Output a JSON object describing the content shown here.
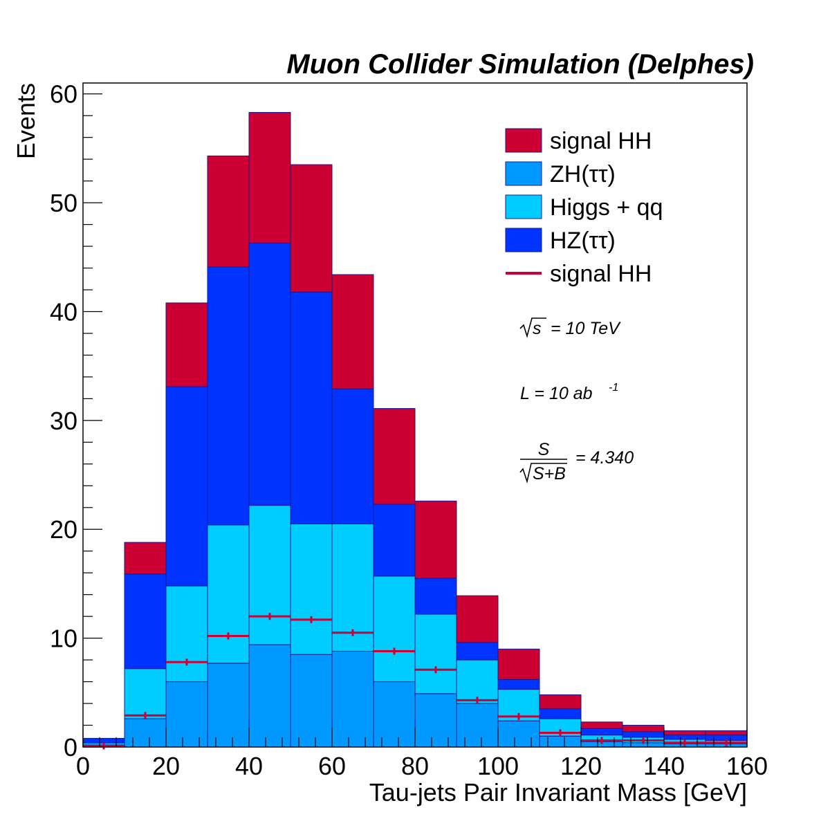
{
  "chart_data": {
    "type": "bar",
    "title": "Muon Collider Simulation (Delphes)",
    "xlabel": "Tau-jets Pair Invariant Mass [GeV]",
    "ylabel": "Events",
    "xlim": [
      0,
      160
    ],
    "ylim": [
      0,
      61
    ],
    "xticks": [
      0,
      20,
      40,
      60,
      80,
      100,
      120,
      140,
      160
    ],
    "yticks": [
      0,
      10,
      20,
      30,
      40,
      50,
      60
    ],
    "bin_edges": [
      0,
      10,
      20,
      30,
      40,
      50,
      60,
      70,
      80,
      90,
      100,
      110,
      120,
      130,
      140,
      150,
      160
    ],
    "stacked": true,
    "series": [
      {
        "name": "ZH(ττ)",
        "color": "#0099ff",
        "values": [
          0.4,
          2.6,
          6.0,
          7.7,
          9.4,
          8.5,
          8.8,
          6.0,
          4.9,
          4.0,
          2.4,
          1.0,
          0.5,
          0.4,
          0.3,
          0.3
        ]
      },
      {
        "name": "Higgs + qq",
        "color": "#00ccff",
        "values": [
          0.0,
          4.6,
          8.8,
          12.7,
          12.8,
          12.0,
          11.7,
          9.7,
          7.3,
          4.0,
          2.9,
          1.6,
          0.6,
          0.5,
          0.4,
          0.3
        ]
      },
      {
        "name": "HZ(ττ)",
        "color": "#0033ff",
        "values": [
          0.4,
          8.7,
          18.3,
          23.7,
          24.1,
          21.3,
          12.4,
          6.6,
          3.3,
          1.6,
          0.9,
          0.9,
          0.6,
          0.5,
          0.4,
          0.5
        ]
      },
      {
        "name": "signal HH",
        "color": "#cc0033",
        "values": [
          0.0,
          2.9,
          7.7,
          10.2,
          12.0,
          11.7,
          10.5,
          8.8,
          7.1,
          4.3,
          2.8,
          1.3,
          0.6,
          0.6,
          0.4,
          0.4
        ]
      }
    ],
    "overlay": {
      "name": "signal HH",
      "color": "#cc0033",
      "style": "line",
      "values": [
        0.1,
        2.9,
        7.8,
        10.2,
        12.0,
        11.7,
        10.5,
        8.8,
        7.1,
        4.3,
        2.8,
        1.3,
        0.6,
        0.6,
        0.4,
        0.4
      ]
    },
    "legend_position": "top-right",
    "legend": [
      {
        "label": "signal HH",
        "color": "#cc0033",
        "kind": "box"
      },
      {
        "label": "ZH(ττ)",
        "color": "#0099ff",
        "kind": "box"
      },
      {
        "label": "Higgs + qq",
        "color": "#00ccff",
        "kind": "box"
      },
      {
        "label": "HZ(ττ)",
        "color": "#0033ff",
        "kind": "box"
      },
      {
        "label": "signal HH",
        "color": "#cc0033",
        "kind": "line"
      }
    ],
    "annotations": {
      "sqrt_s_symbol": "s",
      "sqrt_s_value": "= 10 TeV",
      "lumi_text": "L = 10 ab",
      "lumi_exp": "-1",
      "frac_num": "S",
      "frac_den": "S+B",
      "significance": "= 4.340"
    }
  }
}
